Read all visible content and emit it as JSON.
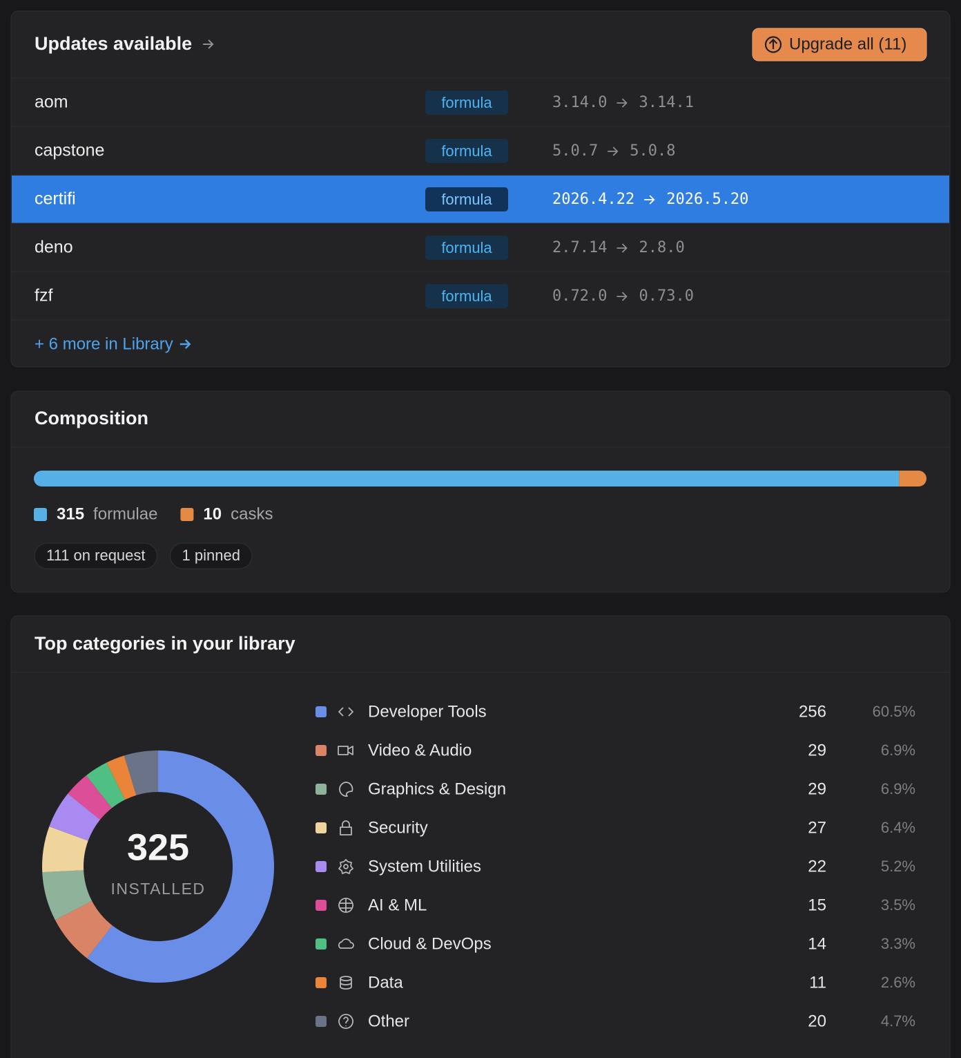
{
  "updates": {
    "title": "Updates available",
    "upgrade_button": "Upgrade all (11)",
    "selected_row": 2,
    "rows": [
      {
        "name": "aom",
        "kind": "formula",
        "from": "3.14.0",
        "to": "3.14.1"
      },
      {
        "name": "capstone",
        "kind": "formula",
        "from": "5.0.7",
        "to": "5.0.8"
      },
      {
        "name": "certifi",
        "kind": "formula",
        "from": "2026.4.22",
        "to": "2026.5.20"
      },
      {
        "name": "deno",
        "kind": "formula",
        "from": "2.7.14",
        "to": "2.8.0"
      },
      {
        "name": "fzf",
        "kind": "formula",
        "from": "0.72.0",
        "to": "0.73.0"
      }
    ],
    "more": "+ 6 more in Library"
  },
  "composition": {
    "title": "Composition",
    "segments": [
      {
        "count": 315,
        "label": "formulae",
        "color": "#56b0e6"
      },
      {
        "count": 10,
        "label": "casks",
        "color": "#e58a45"
      }
    ],
    "chips": [
      "111 on request",
      "1 pinned"
    ]
  },
  "categories": {
    "title": "Top categories in your library",
    "total": 325,
    "total_label": "INSTALLED",
    "items": [
      {
        "name": "Developer Tools",
        "count": 256,
        "share": "60.5%",
        "color": "#6a8ee8"
      },
      {
        "name": "Video & Audio",
        "count": 29,
        "share": "6.9%",
        "color": "#d98466"
      },
      {
        "name": "Graphics & Design",
        "count": 29,
        "share": "6.9%",
        "color": "#8fb39a"
      },
      {
        "name": "Security",
        "count": 27,
        "share": "6.4%",
        "color": "#efd49c"
      },
      {
        "name": "System Utilities",
        "count": 22,
        "share": "5.2%",
        "color": "#a98af0"
      },
      {
        "name": "AI & ML",
        "count": 15,
        "share": "3.5%",
        "color": "#dc4f98"
      },
      {
        "name": "Cloud & DevOps",
        "count": 14,
        "share": "3.3%",
        "color": "#4fbf83"
      },
      {
        "name": "Data",
        "count": 11,
        "share": "2.6%",
        "color": "#ea8439"
      },
      {
        "name": "Other",
        "count": 20,
        "share": "4.7%",
        "color": "#6b7388"
      }
    ]
  }
}
